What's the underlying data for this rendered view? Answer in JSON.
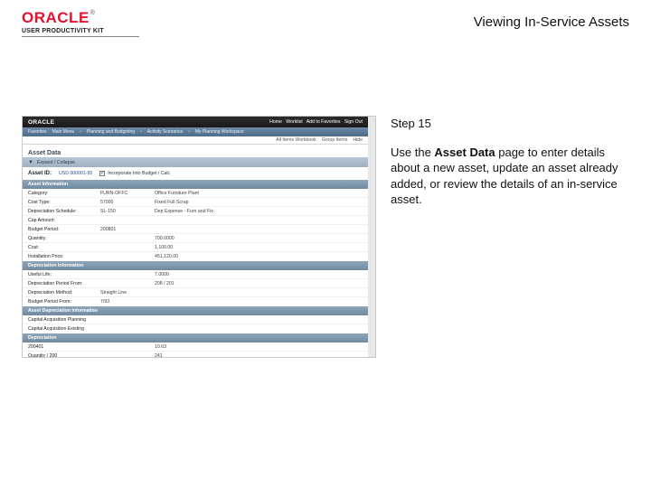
{
  "header": {
    "logo": {
      "brand": "ORACLE",
      "tm": "®",
      "sub": "USER PRODUCTIVITY KIT"
    },
    "page_title": "Viewing In-Service Assets"
  },
  "instruction": {
    "step_label": "Step 15",
    "body_pre": "Use the ",
    "body_bold": "Asset Data",
    "body_post": " page to enter details about a new asset, update an asset already added, or review the details of an in-service asset."
  },
  "screenshot": {
    "colors": {
      "topbar_bg1": "#2d2d2d",
      "topbar_bg2": "#1a1a1a",
      "navbar_bg1": "#6c8aa6",
      "navbar_bg2": "#4b6b88",
      "section_bg1": "#8ea5ba",
      "section_bg2": "#6f8aa2",
      "collapse_bg1": "#b6c6d4",
      "collapse_bg2": "#9fb2c4",
      "border": "#c9c9c9",
      "scrollbar": "#e8e8e8",
      "link": "#2a4ea0"
    },
    "topbar": {
      "brand": "ORACLE",
      "right_items": [
        "Home",
        "Worklist",
        "Add to Favorites",
        "Sign Out"
      ]
    },
    "nav": {
      "items": [
        "Favorites",
        "Main Menu",
        "Planning and Budgeting",
        "Activity Scenarios",
        "My Planning Workspace"
      ],
      "right_items": [
        "New Window",
        "Customize Page"
      ]
    },
    "filter": {
      "items": [
        "All Items Workbook",
        "Group Items",
        "Hide"
      ]
    },
    "page_heading": "Asset Data",
    "collapse": {
      "label": "Expand / Collapse"
    },
    "asset_id": {
      "label": "Asset ID:",
      "value": "USD 000001-95",
      "checkbox_label": "Incorporate Into Budget / Calc",
      "checked": true
    },
    "sections": [
      {
        "title": "Asset Information",
        "rows": [
          {
            "k": "Category:",
            "v1": "FURN-OFFC",
            "v2": "Office Furniture Plant"
          },
          {
            "k": "Cost Type:",
            "v1": "57000",
            "v2": "Fixed Full Scrap"
          },
          {
            "k": "Depreciation Schedule:",
            "v1": "SL-150",
            "v2": "Dep Expense - Furn and Fix"
          },
          {
            "k": "Cap Amount:",
            "v1": "",
            "v2": ""
          },
          {
            "k": "Budget Period:",
            "v1": "200801",
            "v2": ""
          },
          {
            "k": "Quantity:",
            "v1": "",
            "v2": "700.0000"
          },
          {
            "k": "Cost:",
            "v1": "",
            "v2": "1,100.00"
          },
          {
            "k": "Installation Price:",
            "v1": "",
            "v2": "451,120.00"
          }
        ]
      },
      {
        "title": "Depreciation Information",
        "rows": [
          {
            "k": "Useful Life:",
            "v1": "",
            "v2": "7.0000"
          },
          {
            "k": "Depreciation Period From:",
            "v1": "",
            "v2": "208 / 201"
          },
          {
            "k": "Depreciation Method:",
            "v1": "Straight Line",
            "v2": ""
          },
          {
            "k": "Budget Period From:",
            "v1": "7/93",
            "v2": ""
          }
        ]
      },
      {
        "title": "Asset Depreciation Information",
        "rows": [
          {
            "k": "Capital Acquisition Planning",
            "v1": "",
            "v2": ""
          },
          {
            "k": "Capital Acquisition Existing",
            "v1": "",
            "v2": ""
          }
        ]
      },
      {
        "title": "Depreciation",
        "rows": [
          {
            "k": "200401",
            "v1": "",
            "v2": "10.63"
          },
          {
            "k": "Quantity / 200",
            "v1": "",
            "v2": "241"
          },
          {
            "k": "Useful Year",
            "v1": "",
            "v2": "13.02"
          },
          {
            "k": "Useful Life",
            "v1": "",
            "v2": "13.02"
          }
        ]
      }
    ]
  }
}
